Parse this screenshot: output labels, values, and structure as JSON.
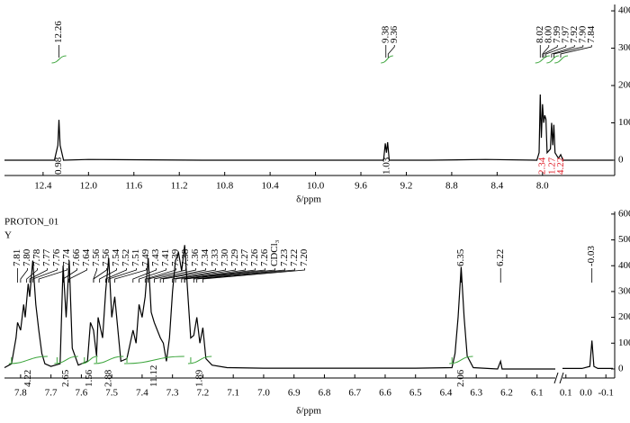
{
  "chart_data": [
    {
      "type": "line",
      "x_label": "δ/ppm",
      "xlim": [
        12.74,
        7.38
      ],
      "xticks": [
        12.4,
        {
          "value": 12,
          "label": "12.0"
        },
        11.6,
        11.2,
        10.8,
        10.4,
        {
          "value": 10,
          "label": "10.0"
        },
        9.6,
        9.2,
        8.8,
        8.4,
        {
          "value": 8,
          "label": "8.0"
        }
      ],
      "y2lim": [
        -41,
        417
      ],
      "y2ticks": [
        0,
        100,
        200,
        300,
        400
      ],
      "series": [
        {
          "color": "#000000",
          "axis": "y2",
          "x": [
            12.74,
            12.3,
            12.27,
            12.26,
            12.25,
            12.22,
            12.0,
            11.0,
            10.0,
            9.4,
            9.385,
            9.375,
            9.365,
            9.35,
            9.0,
            8.5,
            8.05,
            8.03,
            8.02,
            8.01,
            8.0,
            7.99,
            7.98,
            7.97,
            7.96,
            7.93,
            7.92,
            7.91,
            7.9,
            7.89,
            7.86,
            7.84,
            7.82,
            7.38
          ],
          "values": [
            0,
            0,
            40,
            108,
            40,
            0,
            2,
            0,
            0,
            0,
            45,
            20,
            48,
            0,
            0,
            2,
            0,
            20,
            176,
            60,
            150,
            100,
            120,
            110,
            20,
            30,
            100,
            40,
            95,
            20,
            5,
            15,
            0,
            0
          ]
        }
      ],
      "peak_labels": [
        12.26,
        9.38,
        9.36,
        8.02,
        {
          "value": 8,
          "label": "8.00"
        },
        7.99,
        7.97,
        7.92,
        {
          "value": 7.9,
          "label": "7.90"
        },
        7.84
      ],
      "integrals": [
        {
          "from": 12.3,
          "to": 12.22,
          "value": 0.98,
          "color": "#000000"
        },
        {
          "from": 9.4,
          "to": 9.34,
          "value": 1.03,
          "color": "#000000"
        },
        {
          "from": 8.04,
          "to": 7.96,
          "value": 2.34,
          "color": "#e0202a"
        },
        {
          "from": 7.94,
          "to": 7.88,
          "value": 1.27,
          "color": "#e0202a"
        },
        {
          "from": 7.87,
          "to": 7.8,
          "value": 4.22,
          "color": "#e0202a"
        }
      ],
      "integral_curve_color": "#3aa43a"
    },
    {
      "type": "line",
      "x_label": "δ/ppm",
      "annotations": [
        "PROTON_01",
        "Y"
      ],
      "segments": [
        {
          "xlim": [
            7.853,
            6.04
          ],
          "xticks": [
            7.8,
            7.7,
            7.6,
            7.5,
            7.4,
            7.3,
            7.2,
            7.1,
            {
              "value": 7,
              "label": "7.0"
            },
            6.9,
            6.8,
            6.7,
            6.6,
            6.5,
            6.4,
            6.3,
            6.2,
            6.1
          ]
        },
        {
          "xlim": [
            0.117,
            -0.135
          ],
          "xticks": [
            0.1,
            {
              "value": 0,
              "label": "0.0"
            },
            -0.1
          ]
        }
      ],
      "y2lim": [
        -35,
        610
      ],
      "y2ticks": [
        0,
        100,
        200,
        300,
        400,
        500,
        600
      ],
      "series": [
        {
          "color": "#000000",
          "axis": "y2",
          "x": [
            7.853,
            7.83,
            7.815,
            7.81,
            7.8,
            7.79,
            7.785,
            7.775,
            7.77,
            7.76,
            7.75,
            7.74,
            7.73,
            7.72,
            7.7,
            7.67,
            7.66,
            7.65,
            7.64,
            7.63,
            7.61,
            7.58,
            7.57,
            7.56,
            7.55,
            7.545,
            7.53,
            7.52,
            7.51,
            7.5,
            7.49,
            7.47,
            7.45,
            7.43,
            7.42,
            7.41,
            7.4,
            7.39,
            7.38,
            7.37,
            7.36,
            7.34,
            7.33,
            7.32,
            7.31,
            7.3,
            7.29,
            7.28,
            7.27,
            7.26,
            7.25,
            7.24,
            7.23,
            7.22,
            7.21,
            7.2,
            7.19,
            7.17,
            7.12,
            7.0,
            6.5,
            6.38,
            6.37,
            6.36,
            6.35,
            6.34,
            6.33,
            6.31,
            6.23,
            6.22,
            6.215,
            6.04,
            0.117,
            0.05,
            0.02,
            -0.02,
            -0.03,
            -0.04,
            -0.06,
            -0.135
          ],
          "values": [
            5,
            20,
            120,
            180,
            150,
            250,
            200,
            330,
            280,
            420,
            250,
            150,
            60,
            20,
            10,
            20,
            400,
            200,
            420,
            80,
            15,
            30,
            180,
            150,
            50,
            200,
            120,
            300,
            430,
            200,
            280,
            30,
            40,
            150,
            100,
            250,
            200,
            280,
            430,
            220,
            180,
            120,
            100,
            30,
            120,
            300,
            420,
            450,
            380,
            480,
            300,
            120,
            130,
            200,
            100,
            160,
            40,
            15,
            5,
            3,
            3,
            5,
            60,
            200,
            395,
            200,
            50,
            5,
            0,
            30,
            0,
            0,
            2,
            2,
            2,
            10,
            110,
            10,
            2,
            2
          ]
        }
      ],
      "peak_labels": [
        7.81,
        {
          "value": 7.8,
          "label": "7.80"
        },
        7.78,
        7.77,
        7.76,
        7.74,
        7.66,
        7.64,
        7.56,
        7.56,
        7.54,
        7.52,
        7.51,
        7.49,
        7.43,
        7.41,
        7.39,
        7.38,
        7.36,
        7.34,
        7.33,
        {
          "value": 7.3,
          "label": "7.30"
        },
        7.29,
        7.27,
        7.26,
        7.26,
        7.23,
        7.22,
        {
          "value": 7.2,
          "label": "7.20"
        },
        6.35,
        6.22,
        -0.03
      ],
      "solvent_label": {
        "value": 7.26,
        "label": "CDCl₃"
      },
      "integrals": [
        {
          "from": 7.83,
          "to": 7.72,
          "value": 4.22,
          "color": "#000000"
        },
        {
          "from": 7.68,
          "to": 7.62,
          "value": 2.65,
          "color": "#000000"
        },
        {
          "from": 7.59,
          "to": 7.555,
          "value": 1.56,
          "color": "#000000"
        },
        {
          "from": 7.55,
          "to": 7.47,
          "value": 2.88,
          "color": "#000000"
        },
        {
          "from": 7.45,
          "to": 7.27,
          "value": 11.12,
          "color": "#000000"
        },
        {
          "from": 7.24,
          "to": 7.18,
          "value": 1.89,
          "color": "#000000"
        },
        {
          "from": 6.38,
          "to": 6.32,
          "value": 2.06,
          "color": "#000000"
        }
      ],
      "integral_curve_color": "#3aa43a"
    }
  ]
}
